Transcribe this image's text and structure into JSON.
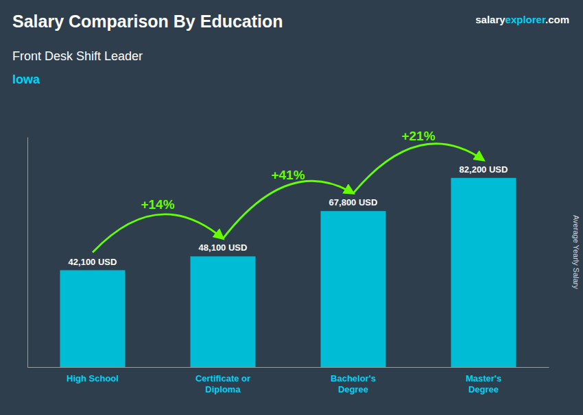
{
  "chart_data": {
    "type": "bar",
    "title": "Salary Comparison By Education",
    "subtitle": "Front Desk Shift Leader",
    "location": "Iowa",
    "brand": [
      "salary",
      "explorer",
      ".com"
    ],
    "ylabel": "Average Yearly Salary",
    "categories": [
      "High School",
      "Certificate or\nDiploma",
      "Bachelor's\nDegree",
      "Master's\nDegree"
    ],
    "values": [
      42100,
      48100,
      67800,
      82200
    ],
    "value_labels": [
      "42,100 USD",
      "48,100 USD",
      "67,800 USD",
      "82,200 USD"
    ],
    "data_labels": true,
    "annotations": [
      "+14%",
      "+41%",
      "+21%"
    ],
    "color": "#00bcd4",
    "ylim": [
      0,
      100000
    ],
    "tick_labels": "x"
  }
}
